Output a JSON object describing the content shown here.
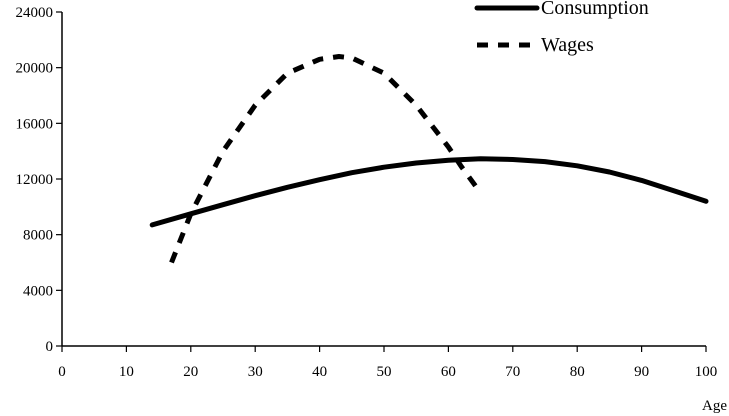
{
  "chart_data": {
    "type": "line",
    "title": "",
    "xlabel": "Age",
    "ylabel": "",
    "xlim": [
      0,
      100
    ],
    "ylim": [
      0,
      24000
    ],
    "x_ticks": [
      0,
      10,
      20,
      30,
      40,
      50,
      60,
      70,
      80,
      90,
      100
    ],
    "y_ticks": [
      0,
      4000,
      8000,
      12000,
      16000,
      20000,
      24000
    ],
    "x_tick_labels": [
      "0",
      "10",
      "20",
      "30",
      "40",
      "50",
      "60",
      "70",
      "80",
      "90",
      "100"
    ],
    "y_tick_labels": [
      "0",
      "4000",
      "8000",
      "12000",
      "16000",
      "20000",
      "24000"
    ],
    "grid": false,
    "legend_position": "top-right",
    "series": [
      {
        "name": "Consumption",
        "style": "solid",
        "color": "#000000",
        "x": [
          14,
          20,
          25,
          30,
          35,
          40,
          45,
          50,
          55,
          60,
          65,
          70,
          75,
          80,
          85,
          90,
          95,
          100
        ],
        "y": [
          8700,
          9500,
          10150,
          10800,
          11400,
          11950,
          12450,
          12850,
          13150,
          13350,
          13450,
          13400,
          13250,
          12950,
          12500,
          11900,
          11150,
          10400
        ]
      },
      {
        "name": "Wages",
        "style": "dashed",
        "color": "#000000",
        "x": [
          17,
          20,
          25,
          30,
          35,
          40,
          43,
          45,
          50,
          55,
          60,
          62,
          65
        ],
        "y": [
          6000,
          9500,
          14000,
          17300,
          19600,
          20600,
          20800,
          20700,
          19600,
          17300,
          14300,
          12900,
          11000
        ]
      }
    ]
  }
}
